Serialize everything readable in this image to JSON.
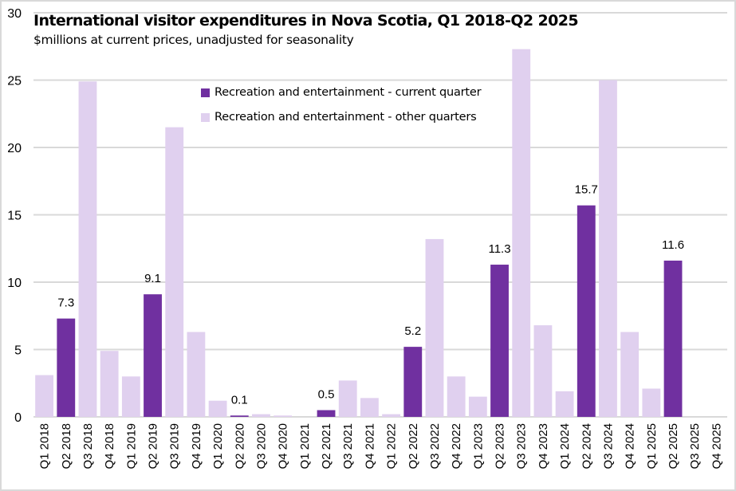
{
  "chart_data": {
    "type": "bar",
    "title": "International visitor expenditures in Nova Scotia, Q1 2018-Q2 2025",
    "subtitle": "$millions at current prices, unadjusted for seasonality",
    "xlabel": "",
    "ylabel": "",
    "ylim": [
      0,
      30
    ],
    "yticks": [
      0,
      5,
      10,
      15,
      20,
      25,
      30
    ],
    "grid": true,
    "legend_position": "top-center",
    "colors": {
      "current": "#7030a0",
      "other": "#e0d0ef",
      "grid": "#d9d9d9",
      "text": "#000000"
    },
    "series": [
      {
        "name": "Recreation and entertainment - current quarter",
        "key": "current"
      },
      {
        "name": "Recreation and entertainment - other quarters",
        "key": "other"
      }
    ],
    "categories": [
      "Q1 2018",
      "Q2 2018",
      "Q3 2018",
      "Q4 2018",
      "Q1 2019",
      "Q2 2019",
      "Q3 2019",
      "Q4 2019",
      "Q1 2020",
      "Q2 2020",
      "Q3 2020",
      "Q4 2020",
      "Q1 2021",
      "Q2 2021",
      "Q3 2021",
      "Q4 2021",
      "Q1 2022",
      "Q2 2022",
      "Q3 2022",
      "Q4 2022",
      "Q1 2023",
      "Q2 2023",
      "Q3 2023",
      "Q4 2023",
      "Q1 2024",
      "Q2 2024",
      "Q3 2024",
      "Q4 2024",
      "Q1 2025",
      "Q2 2025",
      "Q3 2025",
      "Q4 2025"
    ],
    "values": [
      3.1,
      7.3,
      24.9,
      4.9,
      3.0,
      9.1,
      21.5,
      6.3,
      1.2,
      0.1,
      0.2,
      0.1,
      0.0,
      0.5,
      2.7,
      1.4,
      0.2,
      5.2,
      13.2,
      3.0,
      1.5,
      11.3,
      27.3,
      6.8,
      1.9,
      15.7,
      25.0,
      6.3,
      2.1,
      11.6,
      null,
      null
    ],
    "series_assignment": [
      "other",
      "current",
      "other",
      "other",
      "other",
      "current",
      "other",
      "other",
      "other",
      "current",
      "other",
      "other",
      "other",
      "current",
      "other",
      "other",
      "other",
      "current",
      "other",
      "other",
      "other",
      "current",
      "other",
      "other",
      "other",
      "current",
      "other",
      "other",
      "other",
      "current",
      "other",
      "other"
    ],
    "data_labels": {
      "Q2 2018": "7.3",
      "Q2 2019": "9.1",
      "Q2 2020": "0.1",
      "Q2 2021": "0.5",
      "Q2 2022": "5.2",
      "Q2 2023": "11.3",
      "Q2 2024": "15.7",
      "Q2 2025": "11.6"
    }
  }
}
